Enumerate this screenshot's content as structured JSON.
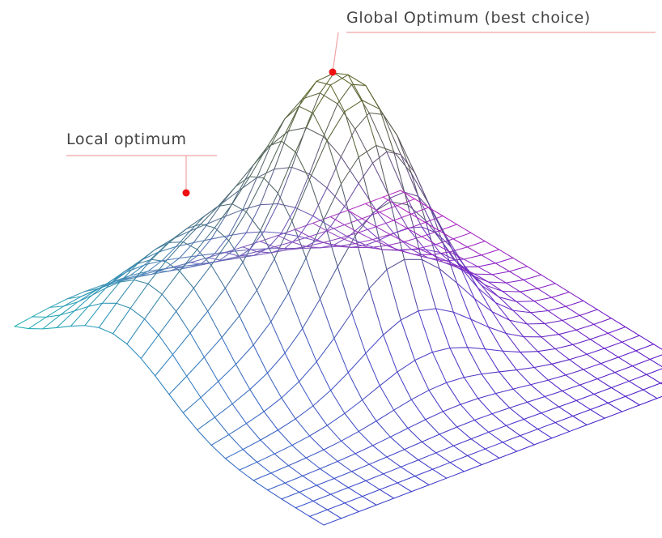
{
  "annotations": {
    "global_label": "Global Optimum (best choice)",
    "local_label": "Local optimum"
  },
  "surface": {
    "type": "wireframe-surface",
    "grid_steps": 22,
    "peaks": [
      {
        "name": "global",
        "amplitude": 1.0,
        "center": [
          0.5,
          0.45
        ],
        "spread": 0.15
      },
      {
        "name": "local",
        "amplitude": 0.42,
        "center": [
          0.18,
          0.32
        ],
        "spread": 0.17
      }
    ],
    "colors": {
      "back_left": "#1fb3b3",
      "back_right": "#c025c0",
      "front_left": "#3a4ccc",
      "front_right": "#4a10c8",
      "peak_tint": "#5a6a10"
    }
  }
}
